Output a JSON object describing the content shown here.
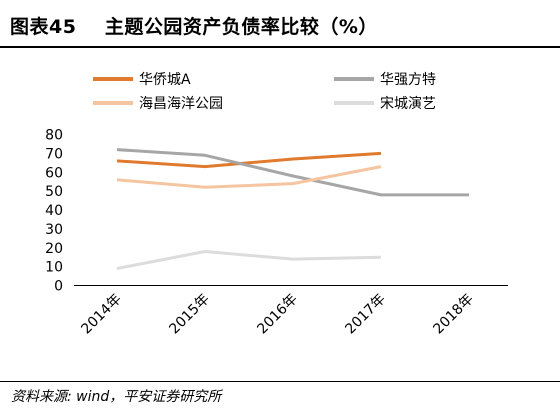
{
  "header": {
    "title": "图表45    主题公园资产负债率比较（%）"
  },
  "footer": {
    "source": "资料来源: wind，平安证券研究所"
  },
  "chart_data": {
    "type": "line",
    "title": "图表45    主题公园资产负债率比较（%）",
    "xlabel": "",
    "ylabel": "",
    "categories": [
      "2014年",
      "2015年",
      "2016年",
      "2017年",
      "2018年"
    ],
    "ylim": [
      0,
      80
    ],
    "yticks": [
      0,
      10,
      20,
      30,
      40,
      50,
      60,
      70,
      80
    ],
    "grid": false,
    "legend_position": "top",
    "series": [
      {
        "name": "华侨城A",
        "color": "#e07a2e",
        "values": [
          66,
          63,
          67,
          70,
          null
        ]
      },
      {
        "name": "华强方特",
        "color": "#a6a6a6",
        "values": [
          72,
          69,
          58,
          48,
          48
        ]
      },
      {
        "name": "海昌海洋公园",
        "color": "#f5c4a0",
        "values": [
          56,
          52,
          54,
          63,
          null
        ]
      },
      {
        "name": "宋城演艺",
        "color": "#dcdcdc",
        "values": [
          9,
          18,
          14,
          15,
          null
        ]
      }
    ]
  }
}
